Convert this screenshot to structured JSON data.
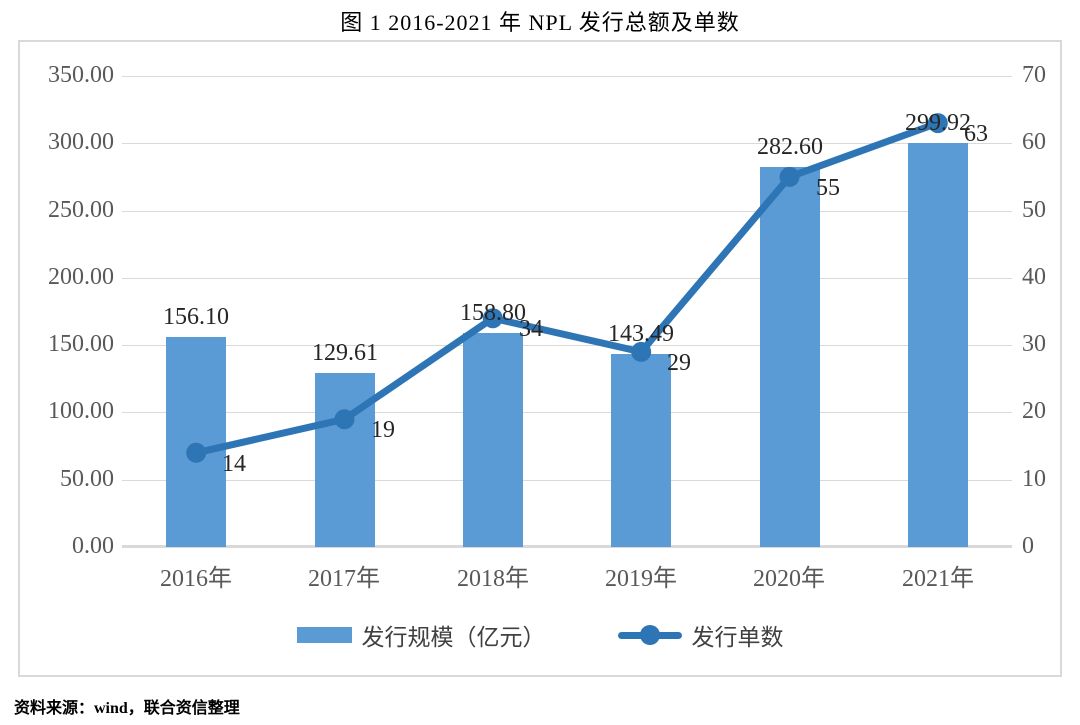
{
  "source": "资料来源：wind，联合资信整理",
  "chart_data": {
    "type": "bar",
    "subtype": "combo-bar-line",
    "title": "图 1  2016-2021 年 NPL 发行总额及单数",
    "categories": [
      "2016年",
      "2017年",
      "2018年",
      "2019年",
      "2020年",
      "2021年"
    ],
    "series": [
      {
        "name": "发行规模（亿元）",
        "type": "bar",
        "axis": "left",
        "values": [
          156.1,
          129.61,
          158.8,
          143.49,
          282.6,
          299.92
        ],
        "labels": [
          "156.10",
          "129.61",
          "158.80",
          "143.49",
          "282.60",
          "299.92"
        ],
        "color": "#5b9bd5"
      },
      {
        "name": "发行单数",
        "type": "line",
        "axis": "right",
        "values": [
          14,
          19,
          34,
          29,
          55,
          63
        ],
        "labels": [
          "14",
          "19",
          "34",
          "29",
          "55",
          "63"
        ],
        "color": "#2e75b6"
      }
    ],
    "left_axis": {
      "min": 0,
      "max": 350,
      "ticks": [
        "350.00",
        "300.00",
        "250.00",
        "200.00",
        "150.00",
        "100.00",
        "50.00",
        "0.00"
      ]
    },
    "right_axis": {
      "min": 0,
      "max": 70,
      "ticks": [
        "70",
        "60",
        "50",
        "40",
        "30",
        "20",
        "10",
        "0"
      ]
    },
    "grid": true,
    "gridline_color": "#d9d9d9",
    "legend_position": "bottom"
  }
}
